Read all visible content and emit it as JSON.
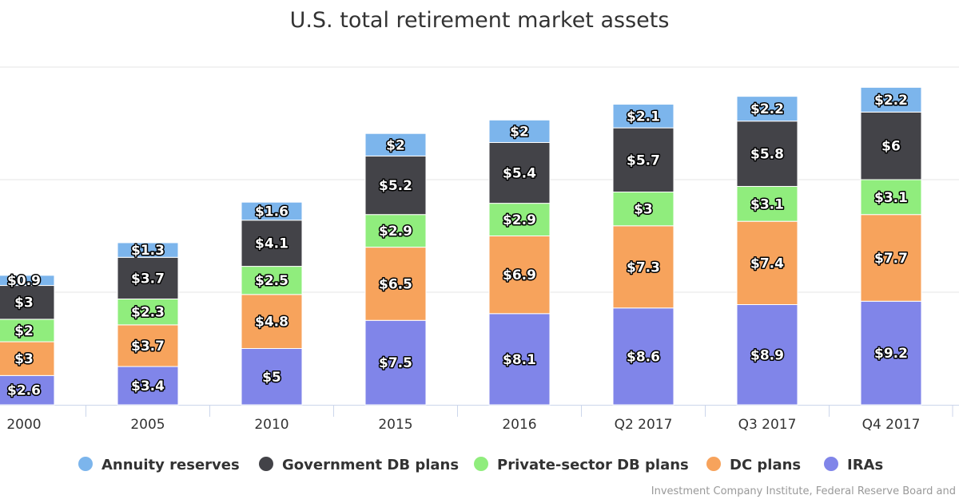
{
  "chart_data": {
    "type": "bar",
    "stacked": true,
    "title": "U.S. total retirement market assets",
    "categories": [
      "2000",
      "2005",
      "2010",
      "2015",
      "2016",
      "Q2 2017",
      "Q3 2017",
      "Q4 2017"
    ],
    "ylim": [
      0,
      30
    ],
    "grid": true,
    "legend_position": "bottom",
    "data_label_prefix": "$",
    "series": [
      {
        "name": "IRAs",
        "color": "#8085e9",
        "values": [
          2.6,
          3.4,
          5,
          7.5,
          8.1,
          8.6,
          8.9,
          9.2
        ]
      },
      {
        "name": "DC plans",
        "color": "#f7a35c",
        "values": [
          3,
          3.7,
          4.8,
          6.5,
          6.9,
          7.3,
          7.4,
          7.7
        ]
      },
      {
        "name": "Private-sector DB plans",
        "color": "#90ed7d",
        "values": [
          2,
          2.3,
          2.5,
          2.9,
          2.9,
          3,
          3.1,
          3.1
        ]
      },
      {
        "name": "Government DB plans",
        "color": "#434348",
        "values": [
          3,
          3.7,
          4.1,
          5.2,
          5.4,
          5.7,
          5.8,
          6
        ]
      },
      {
        "name": "Annuity reserves",
        "color": "#7cb5ec",
        "values": [
          0.9,
          1.3,
          1.6,
          2,
          2,
          2.1,
          2.2,
          2.2
        ]
      }
    ],
    "legend_order": [
      "Annuity reserves",
      "Government DB plans",
      "Private-sector DB plans",
      "DC plans",
      "IRAs"
    ],
    "credit": "Investment Company Institute, Federal Reserve Board and"
  }
}
